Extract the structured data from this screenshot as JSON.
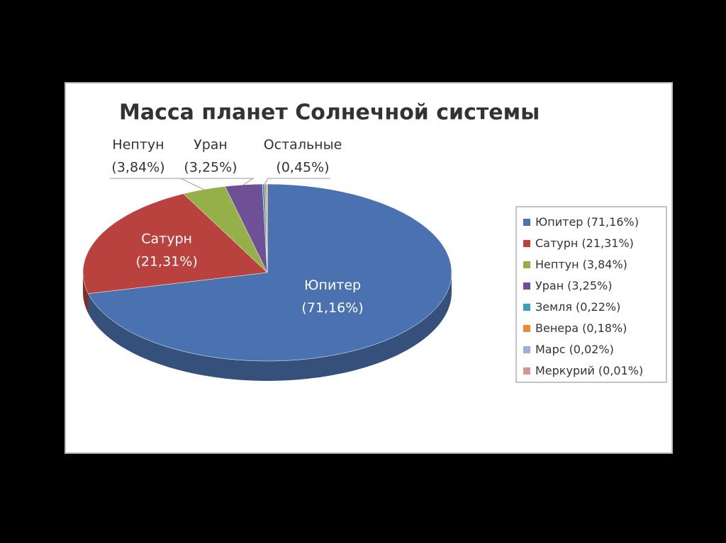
{
  "chart_data": {
    "type": "pie3d",
    "title": "Масса планет Солнечной системы",
    "categories": [
      "Юпитер",
      "Сатурн",
      "Нептун",
      "Уран",
      "Земля",
      "Венера",
      "Марс",
      "Меркурий"
    ],
    "values": [
      71.16,
      21.31,
      3.84,
      3.25,
      0.22,
      0.18,
      0.02,
      0.01
    ],
    "value_labels": [
      "(71,16%)",
      "(21,31%)",
      "(3,84%)",
      "(3,25%)",
      "(0,22%)",
      "(0,18%)",
      "(0,02%)",
      "(0,01%)"
    ],
    "colors": [
      "#4a72b0",
      "#b9413e",
      "#93b148",
      "#6f4f96",
      "#3ba0c0",
      "#ec8a35",
      "#9cb0d6",
      "#d69597"
    ],
    "others": {
      "label": "Остальные",
      "value": 0.45,
      "value_label": "(0,45%)"
    },
    "legend": "right"
  }
}
